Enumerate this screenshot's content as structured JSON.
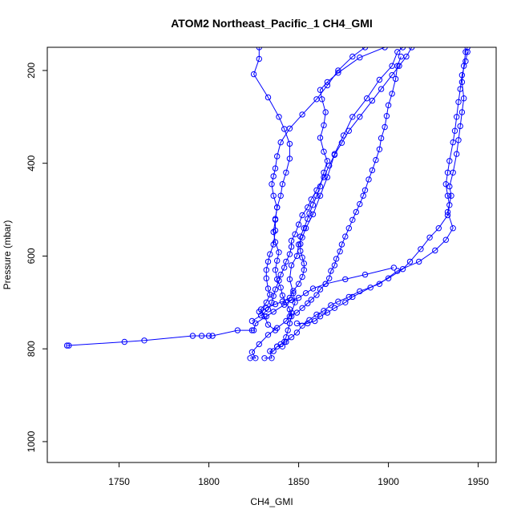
{
  "chart_data": {
    "type": "scatter",
    "title": "ATOM2 Northeast_Pacific_1 CH4_GMI",
    "xlabel": "CH4_GMI",
    "ylabel": "Pressure (mbar)",
    "xlim": [
      1710,
      1960
    ],
    "ylim": [
      1045,
      150
    ],
    "y_reversed": true,
    "x_ticks": [
      1750,
      1800,
      1850,
      1900,
      1950
    ],
    "y_ticks": [
      200,
      400,
      600,
      800,
      1000
    ],
    "x_tick_labels": [
      "1750",
      "1800",
      "1850",
      "1900",
      "1950"
    ],
    "y_tick_labels": [
      "200",
      "400",
      "600",
      "800",
      "1000"
    ],
    "grid": false,
    "legend": "none",
    "colors": {
      "series": "#0000ff"
    },
    "series": [
      {
        "points": [
          [
            1722,
            793
          ],
          [
            1721,
            793
          ],
          [
            1753,
            785
          ],
          [
            1764,
            782
          ],
          [
            1791,
            772
          ],
          [
            1796,
            772
          ],
          [
            1800,
            772
          ],
          [
            1802,
            772
          ],
          [
            1816,
            760
          ],
          [
            1824,
            760
          ],
          [
            1825,
            760
          ],
          [
            1826,
            745
          ],
          [
            1832,
            730
          ],
          [
            1836,
            720
          ],
          [
            1842,
            705
          ],
          [
            1846,
            695
          ],
          [
            1850,
            690
          ],
          [
            1854,
            680
          ],
          [
            1858,
            670
          ],
          [
            1865,
            660
          ],
          [
            1876,
            650
          ],
          [
            1887,
            640
          ],
          [
            1903,
            625
          ]
        ]
      },
      {
        "points": [
          [
            1823,
            820
          ],
          [
            1826,
            820
          ],
          [
            1824,
            807
          ],
          [
            1828,
            790
          ],
          [
            1833,
            770
          ],
          [
            1838,
            755
          ],
          [
            1843,
            740
          ],
          [
            1846,
            722
          ],
          [
            1848,
            700
          ],
          [
            1847,
            680
          ],
          [
            1845,
            650
          ],
          [
            1846,
            620
          ],
          [
            1849,
            600
          ],
          [
            1850,
            575
          ],
          [
            1852,
            560
          ],
          [
            1854,
            540
          ],
          [
            1858,
            510
          ],
          [
            1862,
            470
          ],
          [
            1866,
            430
          ],
          [
            1870,
            380
          ],
          [
            1875,
            340
          ],
          [
            1880,
            300
          ],
          [
            1888,
            260
          ],
          [
            1895,
            220
          ],
          [
            1902,
            190
          ],
          [
            1905,
            160
          ],
          [
            1908,
            150
          ]
        ]
      },
      {
        "points": [
          [
            1831,
            820
          ],
          [
            1835,
            820
          ],
          [
            1834,
            805
          ],
          [
            1836,
            805
          ],
          [
            1838,
            795
          ],
          [
            1841,
            795
          ],
          [
            1842,
            785
          ],
          [
            1843,
            775
          ],
          [
            1844,
            760
          ],
          [
            1845,
            745
          ],
          [
            1846,
            730
          ],
          [
            1845,
            715
          ],
          [
            1843,
            700
          ],
          [
            1841,
            685
          ],
          [
            1840,
            668
          ],
          [
            1838,
            650
          ],
          [
            1837,
            630
          ],
          [
            1838,
            610
          ],
          [
            1839,
            592
          ],
          [
            1837,
            570
          ],
          [
            1836,
            548
          ],
          [
            1837,
            522
          ],
          [
            1838,
            495
          ],
          [
            1840,
            470
          ],
          [
            1841,
            445
          ],
          [
            1843,
            420
          ],
          [
            1845,
            390
          ],
          [
            1845,
            358
          ],
          [
            1842,
            326
          ],
          [
            1839,
            300
          ],
          [
            1833,
            258
          ],
          [
            1825,
            208
          ],
          [
            1828,
            175
          ],
          [
            1828,
            150
          ]
        ]
      },
      {
        "points": [
          [
            1838,
            795
          ],
          [
            1840,
            790
          ],
          [
            1843,
            785
          ],
          [
            1846,
            775
          ],
          [
            1849,
            765
          ],
          [
            1852,
            750
          ],
          [
            1856,
            738
          ],
          [
            1860,
            726
          ],
          [
            1864,
            718
          ],
          [
            1868,
            706
          ],
          [
            1872,
            698
          ],
          [
            1878,
            688
          ],
          [
            1884,
            676
          ],
          [
            1895,
            660
          ],
          [
            1905,
            632
          ],
          [
            1917,
            612
          ],
          [
            1926,
            588
          ],
          [
            1932,
            565
          ],
          [
            1936,
            540
          ],
          [
            1933,
            505
          ],
          [
            1935,
            470
          ],
          [
            1934,
            450
          ],
          [
            1936,
            420
          ],
          [
            1938,
            380
          ],
          [
            1939,
            350
          ],
          [
            1940,
            320
          ],
          [
            1941,
            290
          ],
          [
            1942,
            260
          ],
          [
            1941,
            225
          ],
          [
            1942,
            190
          ],
          [
            1943,
            160
          ],
          [
            1944,
            150
          ]
        ]
      },
      {
        "points": [
          [
            1849,
            745
          ],
          [
            1855,
            745
          ],
          [
            1859,
            740
          ],
          [
            1862,
            730
          ],
          [
            1866,
            722
          ],
          [
            1870,
            712
          ],
          [
            1876,
            700
          ],
          [
            1880,
            688
          ],
          [
            1890,
            668
          ],
          [
            1900,
            648
          ],
          [
            1908,
            628
          ],
          [
            1912,
            612
          ],
          [
            1918,
            585
          ],
          [
            1923,
            560
          ],
          [
            1928,
            540
          ],
          [
            1933,
            512
          ],
          [
            1934,
            490
          ],
          [
            1933,
            470
          ],
          [
            1932,
            445
          ],
          [
            1933,
            420
          ],
          [
            1934,
            395
          ],
          [
            1936,
            355
          ],
          [
            1937,
            330
          ],
          [
            1938,
            300
          ],
          [
            1939,
            268
          ],
          [
            1940,
            240
          ],
          [
            1941,
            210
          ],
          [
            1943,
            180
          ],
          [
            1944,
            160
          ]
        ]
      },
      {
        "points": [
          [
            1837,
            760
          ],
          [
            1833,
            748
          ],
          [
            1831,
            730
          ],
          [
            1829,
            715
          ],
          [
            1832,
            700
          ],
          [
            1834,
            683
          ],
          [
            1833,
            670
          ],
          [
            1832,
            648
          ],
          [
            1832,
            630
          ],
          [
            1833,
            612
          ],
          [
            1834,
            596
          ],
          [
            1836,
            575
          ],
          [
            1837,
            545
          ],
          [
            1837,
            520
          ],
          [
            1838,
            495
          ],
          [
            1836,
            470
          ],
          [
            1835,
            445
          ],
          [
            1836,
            428
          ],
          [
            1837,
            411
          ],
          [
            1838,
            385
          ],
          [
            1840,
            355
          ],
          [
            1845,
            325
          ],
          [
            1852,
            295
          ],
          [
            1860,
            262
          ],
          [
            1866,
            232
          ],
          [
            1872,
            200
          ],
          [
            1880,
            170
          ],
          [
            1887,
            150
          ]
        ]
      },
      {
        "points": [
          [
            1828,
            720
          ],
          [
            1832,
            712
          ],
          [
            1837,
            704
          ],
          [
            1841,
            698
          ],
          [
            1845,
            690
          ],
          [
            1847,
            675
          ],
          [
            1850,
            660
          ],
          [
            1852,
            645
          ],
          [
            1853,
            630
          ],
          [
            1853,
            616
          ],
          [
            1852,
            603
          ],
          [
            1851,
            589
          ],
          [
            1851,
            574
          ],
          [
            1851,
            558
          ],
          [
            1853,
            540
          ],
          [
            1855,
            520
          ],
          [
            1856,
            508
          ],
          [
            1858,
            490
          ],
          [
            1860,
            470
          ],
          [
            1862,
            450
          ],
          [
            1864,
            420
          ],
          [
            1866,
            395
          ],
          [
            1864,
            375
          ],
          [
            1862,
            345
          ],
          [
            1864,
            318
          ],
          [
            1865,
            290
          ],
          [
            1863,
            262
          ],
          [
            1862,
            242
          ],
          [
            1866,
            225
          ],
          [
            1872,
            205
          ],
          [
            1884,
            172
          ],
          [
            1898,
            150
          ]
        ]
      },
      {
        "points": [
          [
            1824,
            740
          ],
          [
            1829,
            728
          ],
          [
            1833,
            715
          ],
          [
            1835,
            700
          ],
          [
            1836,
            686
          ],
          [
            1837,
            672
          ],
          [
            1839,
            653
          ],
          [
            1840,
            640
          ],
          [
            1842,
            625
          ],
          [
            1843,
            612
          ],
          [
            1845,
            596
          ],
          [
            1846,
            580
          ],
          [
            1846,
            567
          ],
          [
            1848,
            553
          ],
          [
            1850,
            532
          ],
          [
            1852,
            512
          ],
          [
            1855,
            495
          ],
          [
            1857,
            478
          ],
          [
            1860,
            458
          ],
          [
            1864,
            430
          ],
          [
            1867,
            405
          ],
          [
            1870,
            382
          ],
          [
            1874,
            356
          ],
          [
            1878,
            330
          ],
          [
            1884,
            300
          ],
          [
            1891,
            265
          ],
          [
            1896,
            240
          ],
          [
            1902,
            210
          ],
          [
            1906,
            190
          ],
          [
            1910,
            170
          ],
          [
            1913,
            150
          ]
        ]
      },
      {
        "points": [
          [
            1845,
            730
          ],
          [
            1849,
            722
          ],
          [
            1852,
            712
          ],
          [
            1855,
            702
          ],
          [
            1857,
            694
          ],
          [
            1860,
            684
          ],
          [
            1862,
            672
          ],
          [
            1865,
            660
          ],
          [
            1867,
            648
          ],
          [
            1868,
            632
          ],
          [
            1870,
            620
          ],
          [
            1871,
            606
          ],
          [
            1873,
            590
          ],
          [
            1874,
            575
          ],
          [
            1876,
            558
          ],
          [
            1878,
            540
          ],
          [
            1880,
            522
          ],
          [
            1882,
            505
          ],
          [
            1884,
            488
          ],
          [
            1886,
            470
          ],
          [
            1887,
            458
          ],
          [
            1889,
            435
          ],
          [
            1891,
            415
          ],
          [
            1893,
            393
          ],
          [
            1895,
            370
          ],
          [
            1896,
            346
          ],
          [
            1898,
            322
          ],
          [
            1899,
            298
          ],
          [
            1900,
            275
          ],
          [
            1902,
            250
          ],
          [
            1904,
            218
          ],
          [
            1905,
            190
          ],
          [
            1907,
            170
          ]
        ]
      }
    ]
  }
}
